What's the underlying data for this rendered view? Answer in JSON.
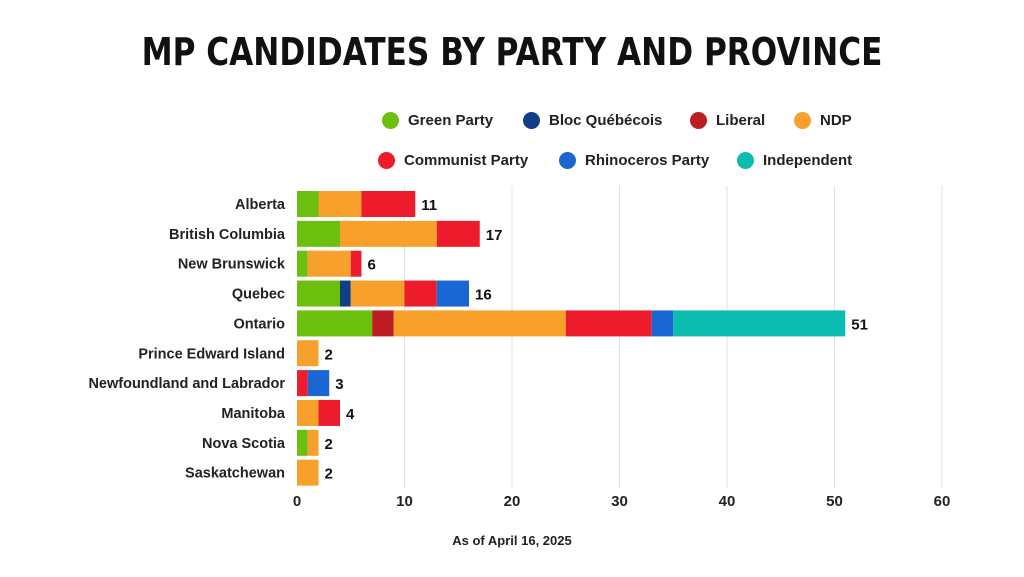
{
  "chart_data": {
    "type": "bar",
    "orientation": "horizontal",
    "stacked": true,
    "title": "MP CANDIDATES BY PARTY AND PROVINCE",
    "note": "As of April 16, 2025",
    "categories": [
      "Alberta",
      "British Columbia",
      "New Brunswick",
      "Quebec",
      "Ontario",
      "Prince Edward Island",
      "Newfoundland and Labrador",
      "Manitoba",
      "Nova Scotia",
      "Saskatchewan"
    ],
    "series": [
      {
        "name": "Green Party",
        "color": "#6cbf0c",
        "values": [
          2,
          4,
          1,
          4,
          7,
          0,
          0,
          0,
          1,
          0
        ]
      },
      {
        "name": "Bloc Québécois",
        "color": "#113f86",
        "values": [
          0,
          0,
          0,
          1,
          0,
          0,
          0,
          0,
          0,
          0
        ]
      },
      {
        "name": "Liberal",
        "color": "#bf1d24",
        "values": [
          0,
          0,
          0,
          0,
          2,
          0,
          0,
          0,
          0,
          0
        ]
      },
      {
        "name": "NDP",
        "color": "#f7a02b",
        "values": [
          4,
          9,
          4,
          5,
          16,
          2,
          0,
          2,
          1,
          2
        ]
      },
      {
        "name": "Communist Party",
        "color": "#ec1c2d",
        "values": [
          5,
          4,
          1,
          3,
          8,
          0,
          1,
          2,
          0,
          0
        ]
      },
      {
        "name": "Rhinoceros Party",
        "color": "#1a66d2",
        "values": [
          0,
          0,
          0,
          3,
          2,
          0,
          2,
          0,
          0,
          0
        ]
      },
      {
        "name": "Independent",
        "color": "#0bbdb1",
        "values": [
          0,
          0,
          0,
          0,
          16,
          0,
          0,
          0,
          0,
          0
        ]
      }
    ],
    "totals": [
      11,
      17,
      6,
      16,
      51,
      2,
      3,
      4,
      2,
      2
    ],
    "xlim": [
      0,
      60
    ],
    "xticks": [
      0,
      10,
      20,
      30,
      40,
      50,
      60
    ],
    "grid": true,
    "legend_position": "top-right"
  }
}
